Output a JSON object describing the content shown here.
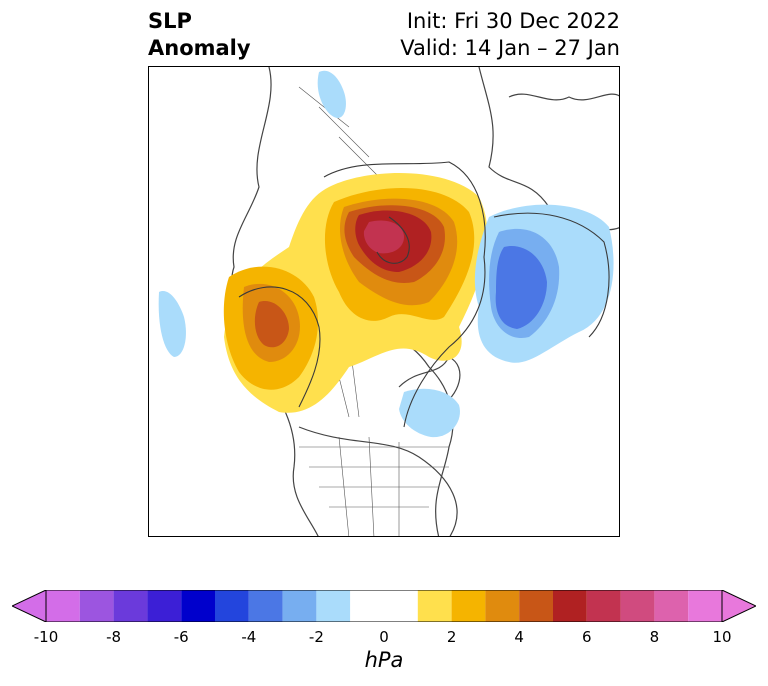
{
  "title": {
    "left_line1": "SLP",
    "left_line2": "Anomaly",
    "right_line1": "Init: Fri 30 Dec 2022",
    "right_line2": "Valid: 14 Jan – 27 Jan"
  },
  "colorbar": {
    "unit": "hPa",
    "ticks": [
      "-10",
      "-8",
      "-6",
      "-4",
      "-2",
      "0",
      "2",
      "4",
      "6",
      "8",
      "10"
    ],
    "levels": [
      -10,
      -9,
      -8,
      -7,
      -6,
      -5,
      -4,
      -3,
      -2,
      -1,
      1,
      2,
      3,
      4,
      5,
      6,
      7,
      8,
      9,
      10
    ],
    "colors": [
      "#d36de8",
      "#9c55e0",
      "#6b3adb",
      "#3c1fd6",
      "#0000cc",
      "#2345dd",
      "#4b77e5",
      "#77aef0",
      "#aadcfb",
      "#ffffff",
      "#ffe04d",
      "#f5b400",
      "#e08b0e",
      "#c85617",
      "#b02122",
      "#c23350",
      "#d04b7f",
      "#dd62ad",
      "#e878dc"
    ],
    "extend_low_color": "#d36de8",
    "extend_high_color": "#e878dc"
  },
  "map": {
    "projection": "polar stereographic (North Pole)",
    "anomaly_features": [
      {
        "name": "positive-anomaly-arctic",
        "peak_hpa": 7
      },
      {
        "name": "positive-anomaly-alaska",
        "peak_hpa": 5
      },
      {
        "name": "negative-anomaly-eurasia",
        "peak_hpa": -5
      },
      {
        "name": "negative-anomaly-east-canada",
        "peak_hpa": -2
      },
      {
        "name": "negative-anomaly-europe",
        "peak_hpa": -2
      },
      {
        "name": "negative-anomaly-pacific",
        "peak_hpa": -2
      }
    ]
  }
}
